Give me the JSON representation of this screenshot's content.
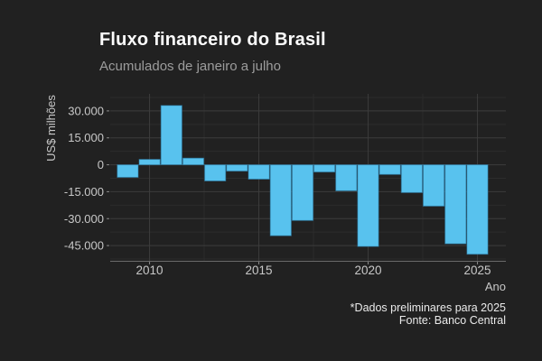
{
  "header": {
    "title": "Fluxo financeiro do Brasil",
    "subtitle": "Acumulados de janeiro a julho"
  },
  "footer": {
    "caption_line1": "*Dados preliminares para 2025",
    "caption_line2": "Fonte: Banco Central"
  },
  "axes": {
    "y_title": "US$ milhões",
    "x_title": "Ano"
  },
  "chart_data": {
    "type": "bar",
    "title": "Fluxo financeiro do Brasil",
    "subtitle": "Acumulados de janeiro a julho",
    "xlabel": "Ano",
    "ylabel": "US$ milhões",
    "caption": [
      "*Dados preliminares para 2025",
      "Fonte: Banco Central"
    ],
    "unit": "US$ milhões",
    "x": [
      2009,
      2010,
      2011,
      2012,
      2013,
      2014,
      2015,
      2016,
      2017,
      2018,
      2019,
      2020,
      2021,
      2022,
      2023,
      2024,
      2025
    ],
    "values": [
      -7000,
      3000,
      33000,
      3700,
      -9000,
      -3500,
      -8000,
      -39500,
      -31000,
      -4000,
      -14500,
      -45500,
      -5400,
      -15500,
      -23000,
      -44000,
      -49800
    ],
    "x_ticks": [
      2010,
      2015,
      2020,
      2025
    ],
    "x_minor_ticks": [
      2012.5,
      2017.5,
      2022.5
    ],
    "y_ticks": [
      30000,
      15000,
      0,
      -15000,
      -30000,
      -45000
    ],
    "y_tick_labels": [
      "30.000",
      "15.000",
      "0",
      "-15.000",
      "-30.000",
      "-45.000"
    ],
    "y_minor_ticks": [
      37500,
      22500,
      7500,
      -7500,
      -22500,
      -37500,
      -52500
    ],
    "ylim": [
      -53500,
      39500
    ],
    "xlim": [
      2008.2,
      2026.3
    ],
    "grid": "major+minor horizontal and vertical",
    "legend": "none",
    "colors": {
      "bar_fill": "#58c2ee",
      "bar_stroke": "#2b7ca8",
      "background": "#212121",
      "grid_major": "#3c3c3c",
      "grid_minor": "#2c2c2c",
      "axis_line": "#6a6a6a",
      "tick_text": "#c8c8c8"
    }
  }
}
